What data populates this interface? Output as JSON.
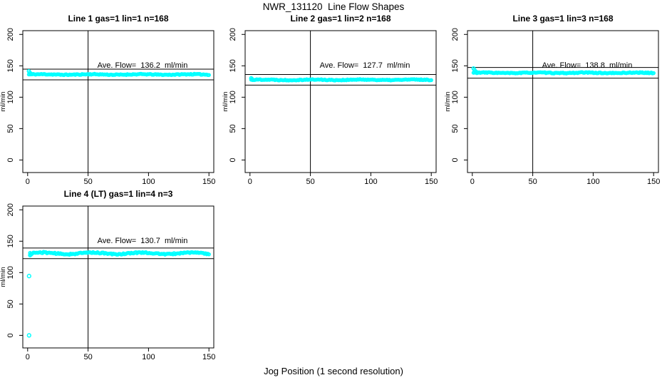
{
  "figure": {
    "title": "NWR_131120  Line Flow Shapes",
    "xlabel": "Jog Position (1 second resolution)",
    "background": "#ffffff",
    "axis_color": "#000000"
  },
  "chart_data": [
    {
      "type": "scatter",
      "title": "Line 1 gas=1 lin=1 n=168",
      "annotation": "Ave. Flow=  136.2  ml/min",
      "ave_flow_ml_min": 136.2,
      "n": 168,
      "point_color": "#00FFFF",
      "ylabel": "ml/min",
      "xticks": [
        0,
        50,
        100,
        150
      ],
      "yticks": [
        0,
        50,
        100,
        150,
        200
      ],
      "xlim": [
        0,
        150
      ],
      "ylim": [
        0,
        200
      ],
      "vline_x": 50,
      "ref_lines": [
        144.7,
        127.7
      ],
      "band": {
        "mean": 136.2,
        "x_start": 1,
        "x_end": 150,
        "noise": 0.7,
        "wobble": 0.4,
        "seed": 11
      },
      "lead_points": [
        [
          1.0,
          141.5
        ],
        [
          1.8,
          139.2
        ],
        [
          2.6,
          137.6
        ]
      ],
      "outliers": []
    },
    {
      "type": "scatter",
      "title": "Line 2 gas=1 lin=2 n=168",
      "annotation": "Ave. Flow=  127.7  ml/min",
      "ave_flow_ml_min": 127.7,
      "n": 168,
      "point_color": "#00FFFF",
      "ylabel": "ml/min",
      "xticks": [
        0,
        50,
        100,
        150
      ],
      "yticks": [
        0,
        50,
        100,
        150,
        200
      ],
      "xlim": [
        0,
        150
      ],
      "ylim": [
        0,
        200
      ],
      "vline_x": 50,
      "ref_lines": [
        136.2,
        119.2
      ],
      "band": {
        "mean": 127.7,
        "x_start": 1,
        "x_end": 150,
        "noise": 0.7,
        "wobble": 0.4,
        "seed": 22
      },
      "lead_points": [
        [
          1.0,
          130.2
        ],
        [
          1.8,
          128.9
        ]
      ],
      "outliers": []
    },
    {
      "type": "scatter",
      "title": "Line 3 gas=1 lin=3 n=168",
      "annotation": "Ave. Flow=  138.8  ml/min",
      "ave_flow_ml_min": 138.8,
      "n": 168,
      "point_color": "#00FFFF",
      "ylabel": "ml/min",
      "xticks": [
        0,
        50,
        100,
        150
      ],
      "yticks": [
        0,
        50,
        100,
        150,
        200
      ],
      "xlim": [
        0,
        150
      ],
      "ylim": [
        0,
        200
      ],
      "vline_x": 50,
      "ref_lines": [
        147.3,
        130.3
      ],
      "band": {
        "mean": 138.8,
        "x_start": 1,
        "x_end": 150,
        "noise": 0.7,
        "wobble": 0.4,
        "seed": 33
      },
      "lead_points": [
        [
          1.0,
          145.8
        ],
        [
          1.8,
          143.4
        ],
        [
          2.6,
          141.4
        ],
        [
          3.4,
          140.2
        ]
      ],
      "outliers": []
    },
    {
      "type": "scatter",
      "title": "Line 4 (LT) gas=1 lin=4 n=3",
      "annotation": "Ave. Flow=  130.7  ml/min",
      "ave_flow_ml_min": 130.7,
      "n": 3,
      "point_color": "#00FFFF",
      "ylabel": "ml/min",
      "xticks": [
        0,
        50,
        100,
        150
      ],
      "yticks": [
        0,
        50,
        100,
        150,
        200
      ],
      "xlim": [
        0,
        150
      ],
      "ylim": [
        0,
        200
      ],
      "vline_x": 50,
      "ref_lines": [
        139.2,
        122.2
      ],
      "band": {
        "mean": 130.7,
        "x_start": 2,
        "x_end": 150,
        "noise": 1.0,
        "wobble": 1.3,
        "seed": 44
      },
      "lead_points": [
        [
          2.0,
          127.6
        ],
        [
          2.8,
          128.8
        ]
      ],
      "outliers": [
        [
          1.2,
          94.5
        ],
        [
          1.2,
          0
        ]
      ]
    }
  ]
}
